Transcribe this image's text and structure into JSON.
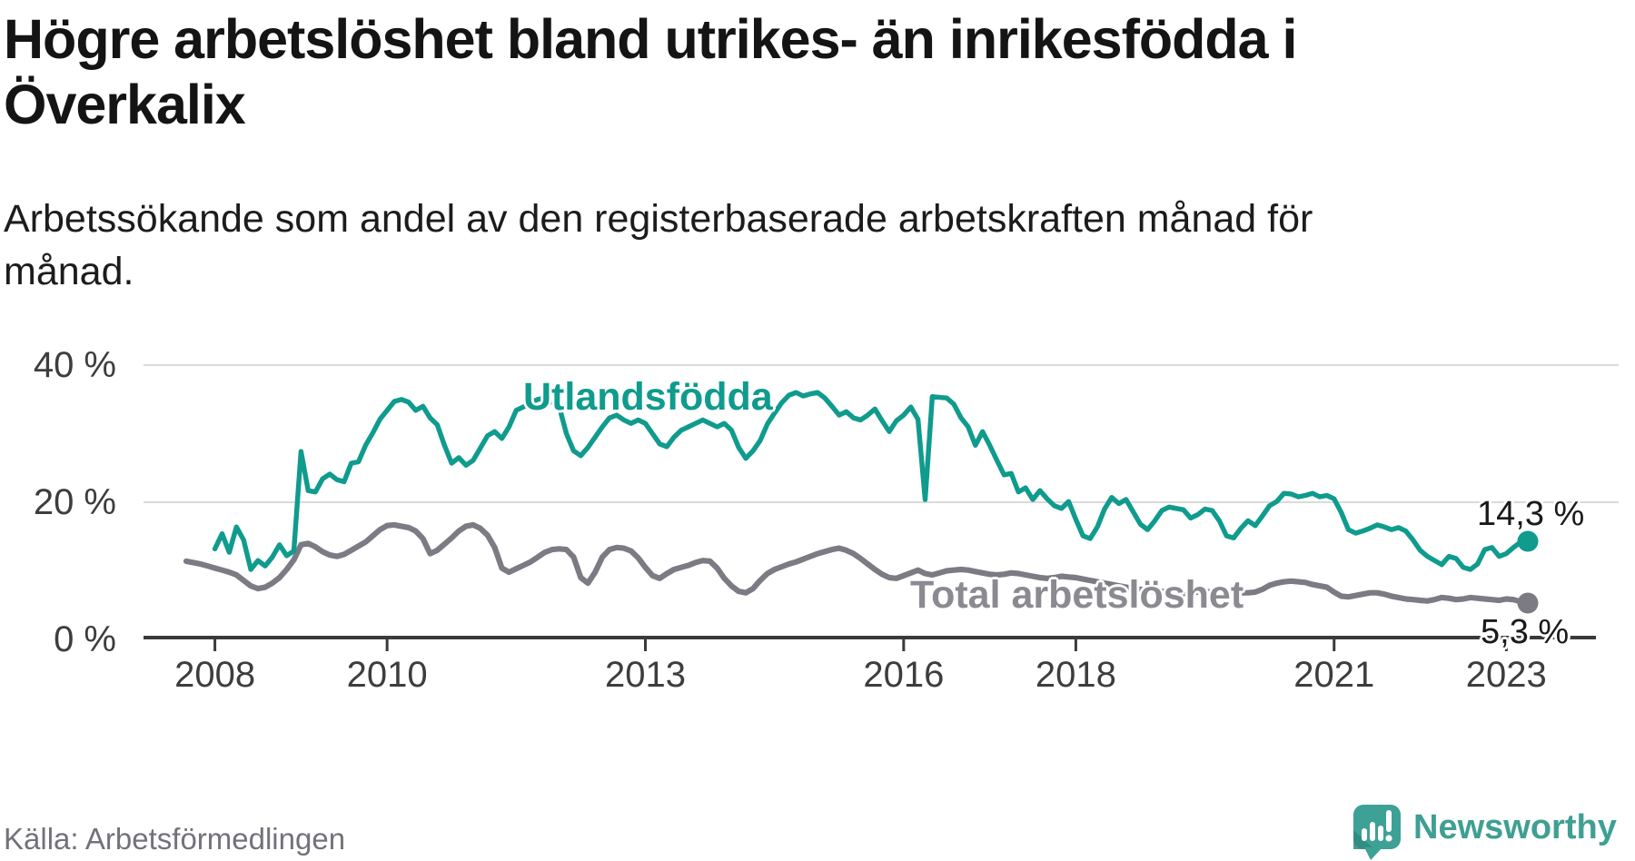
{
  "header": {
    "title": "Högre arbetslöshet bland utrikes- än inrikesfödda i Överkalix",
    "subtitle": "Arbetssökande som andel av den registerbaserade arbetskraften månad för månad."
  },
  "footer": {
    "source": "Källa: Arbetsförmedlingen",
    "brand_name": "Newsworthy",
    "brand_icon": "bar-chart-speech-bubble-icon"
  },
  "colors": {
    "foreign_born_line": "#0f9b8d",
    "total_line": "#7c7b83",
    "total_label_text": "#8b8a91",
    "gridline": "#dadada",
    "axis_line": "#3a3a3a",
    "axis_text": "#3d3d3d",
    "value_label_text": "#1a1a1a",
    "brand_teal": "#3da195"
  },
  "chart_data": {
    "type": "line",
    "title": "Högre arbetslöshet bland utrikes- än inrikesfödda i Överkalix",
    "subtitle": "Arbetssökande som andel av den registerbaserade arbetskraften månad för månad.",
    "source": "Källa: Arbetsförmedlingen",
    "unit": "%",
    "frequency": "monthly",
    "x_start": "2007-09",
    "x_end": "2023-04",
    "ylim": [
      0,
      42
    ],
    "grid": "horizontal-only",
    "legend_position": "inline-labels",
    "y_tick_labels": [
      "40 %",
      "20 %",
      "0 %"
    ],
    "y_tick_values": [
      40,
      20,
      0
    ],
    "x_ticks": [
      {
        "label": "2008",
        "month_index": 4
      },
      {
        "label": "2010",
        "month_index": 28
      },
      {
        "label": "2013",
        "month_index": 64
      },
      {
        "label": "2016",
        "month_index": 100
      },
      {
        "label": "2018",
        "month_index": 124
      },
      {
        "label": "2021",
        "month_index": 160
      },
      {
        "label": "2023",
        "month_index": 184
      }
    ],
    "series": [
      {
        "name": "Total arbetslöshet",
        "color": "#7c7b83",
        "end_label": "5,3 %",
        "end_value": 5.3,
        "values": [
          11.4,
          11.2,
          11.0,
          10.7,
          10.4,
          10.1,
          9.8,
          9.4,
          8.6,
          7.8,
          7.4,
          7.6,
          8.2,
          9.0,
          10.2,
          11.6,
          13.8,
          14.0,
          13.5,
          12.8,
          12.3,
          12.1,
          12.4,
          13.0,
          13.6,
          14.2,
          15.1,
          16.0,
          16.6,
          16.7,
          16.5,
          16.3,
          15.8,
          14.7,
          12.5,
          13.0,
          13.9,
          14.8,
          15.8,
          16.5,
          16.7,
          16.2,
          15.2,
          13.4,
          10.4,
          9.8,
          10.3,
          10.8,
          11.3,
          12.0,
          12.7,
          13.1,
          13.2,
          13.1,
          12.0,
          9.0,
          8.2,
          9.8,
          12.0,
          13.1,
          13.4,
          13.3,
          12.9,
          11.9,
          10.5,
          9.3,
          8.9,
          9.6,
          10.2,
          10.5,
          10.8,
          11.2,
          11.5,
          11.4,
          10.4,
          8.9,
          7.8,
          7.0,
          6.8,
          7.4,
          8.6,
          9.6,
          10.2,
          10.6,
          11.0,
          11.3,
          11.7,
          12.1,
          12.5,
          12.8,
          13.1,
          13.3,
          13.0,
          12.5,
          11.8,
          11.0,
          10.2,
          9.5,
          9.0,
          8.9,
          9.3,
          9.7,
          10.1,
          9.6,
          9.4,
          9.7,
          10.0,
          10.1,
          10.2,
          10.1,
          9.9,
          9.7,
          9.5,
          9.4,
          9.5,
          9.7,
          9.6,
          9.4,
          9.2,
          9.0,
          8.9,
          9.0,
          9.2,
          9.1,
          9.0,
          8.8,
          8.6,
          8.4,
          8.2,
          8.0,
          7.8,
          7.6,
          7.4,
          7.3,
          7.2,
          7.1,
          7.0,
          6.9,
          6.8,
          6.7,
          6.8,
          6.9,
          7.0,
          6.9,
          6.8,
          6.7,
          6.7,
          6.8,
          6.8,
          6.9,
          7.3,
          7.9,
          8.2,
          8.4,
          8.5,
          8.4,
          8.3,
          8.0,
          7.8,
          7.6,
          6.9,
          6.3,
          6.2,
          6.4,
          6.6,
          6.8,
          6.8,
          6.6,
          6.3,
          6.1,
          5.9,
          5.8,
          5.7,
          5.6,
          5.8,
          6.1,
          6.0,
          5.8,
          5.9,
          6.1,
          6.0,
          5.9,
          5.8,
          5.7,
          5.9,
          5.8,
          5.5,
          5.3
        ]
      },
      {
        "name": "Utlandsfödda",
        "color": "#0f9b8d",
        "end_label": "14,3 %",
        "end_value": 14.3,
        "values": [
          null,
          null,
          null,
          null,
          13.2,
          15.4,
          12.7,
          16.4,
          14.5,
          10.2,
          11.5,
          10.7,
          12.0,
          13.8,
          12.2,
          12.9,
          27.4,
          21.7,
          21.5,
          23.4,
          24.1,
          23.3,
          23.0,
          25.7,
          25.9,
          28.3,
          30.1,
          32.1,
          33.4,
          34.7,
          35.0,
          34.6,
          33.4,
          34.0,
          32.3,
          31.3,
          28.3,
          25.7,
          26.5,
          25.4,
          26.1,
          27.9,
          29.7,
          30.3,
          29.3,
          31.0,
          33.4,
          33.9,
          34.5,
          35.0,
          35.2,
          34.6,
          33.9,
          30.0,
          27.5,
          26.8,
          28.0,
          29.5,
          31.0,
          32.3,
          32.7,
          32.0,
          31.5,
          32.0,
          31.5,
          30.0,
          28.5,
          28.1,
          29.5,
          30.5,
          31.0,
          31.5,
          32.0,
          31.5,
          31.0,
          31.5,
          30.5,
          28.0,
          26.4,
          27.5,
          29.0,
          31.4,
          33.0,
          34.5,
          35.6,
          36.0,
          35.5,
          35.8,
          36.0,
          35.2,
          34.0,
          32.7,
          33.2,
          32.3,
          32.0,
          32.7,
          33.6,
          31.9,
          30.3,
          31.9,
          32.7,
          33.9,
          32.1,
          20.4,
          35.4,
          35.3,
          35.2,
          34.3,
          32.3,
          31.0,
          28.3,
          30.3,
          28.3,
          26.1,
          24.0,
          24.2,
          21.5,
          22.1,
          20.4,
          21.7,
          20.5,
          19.5,
          19.1,
          20.1,
          17.5,
          15.1,
          14.7,
          16.4,
          19.0,
          20.7,
          19.8,
          20.4,
          18.6,
          16.8,
          16.0,
          17.3,
          18.8,
          19.3,
          19.1,
          18.9,
          17.7,
          18.2,
          19.0,
          18.8,
          17.3,
          15.1,
          14.8,
          16.2,
          17.3,
          16.6,
          18.0,
          19.5,
          20.1,
          21.3,
          21.2,
          20.8,
          21.0,
          21.3,
          20.8,
          21.0,
          20.5,
          18.5,
          16.0,
          15.5,
          15.8,
          16.2,
          16.7,
          16.4,
          16.0,
          16.3,
          15.8,
          14.5,
          13.0,
          12.1,
          11.5,
          10.9,
          12.1,
          11.8,
          10.5,
          10.2,
          11.0,
          13.1,
          13.4,
          12.1,
          12.5,
          13.4,
          14.2,
          14.3
        ]
      }
    ]
  }
}
